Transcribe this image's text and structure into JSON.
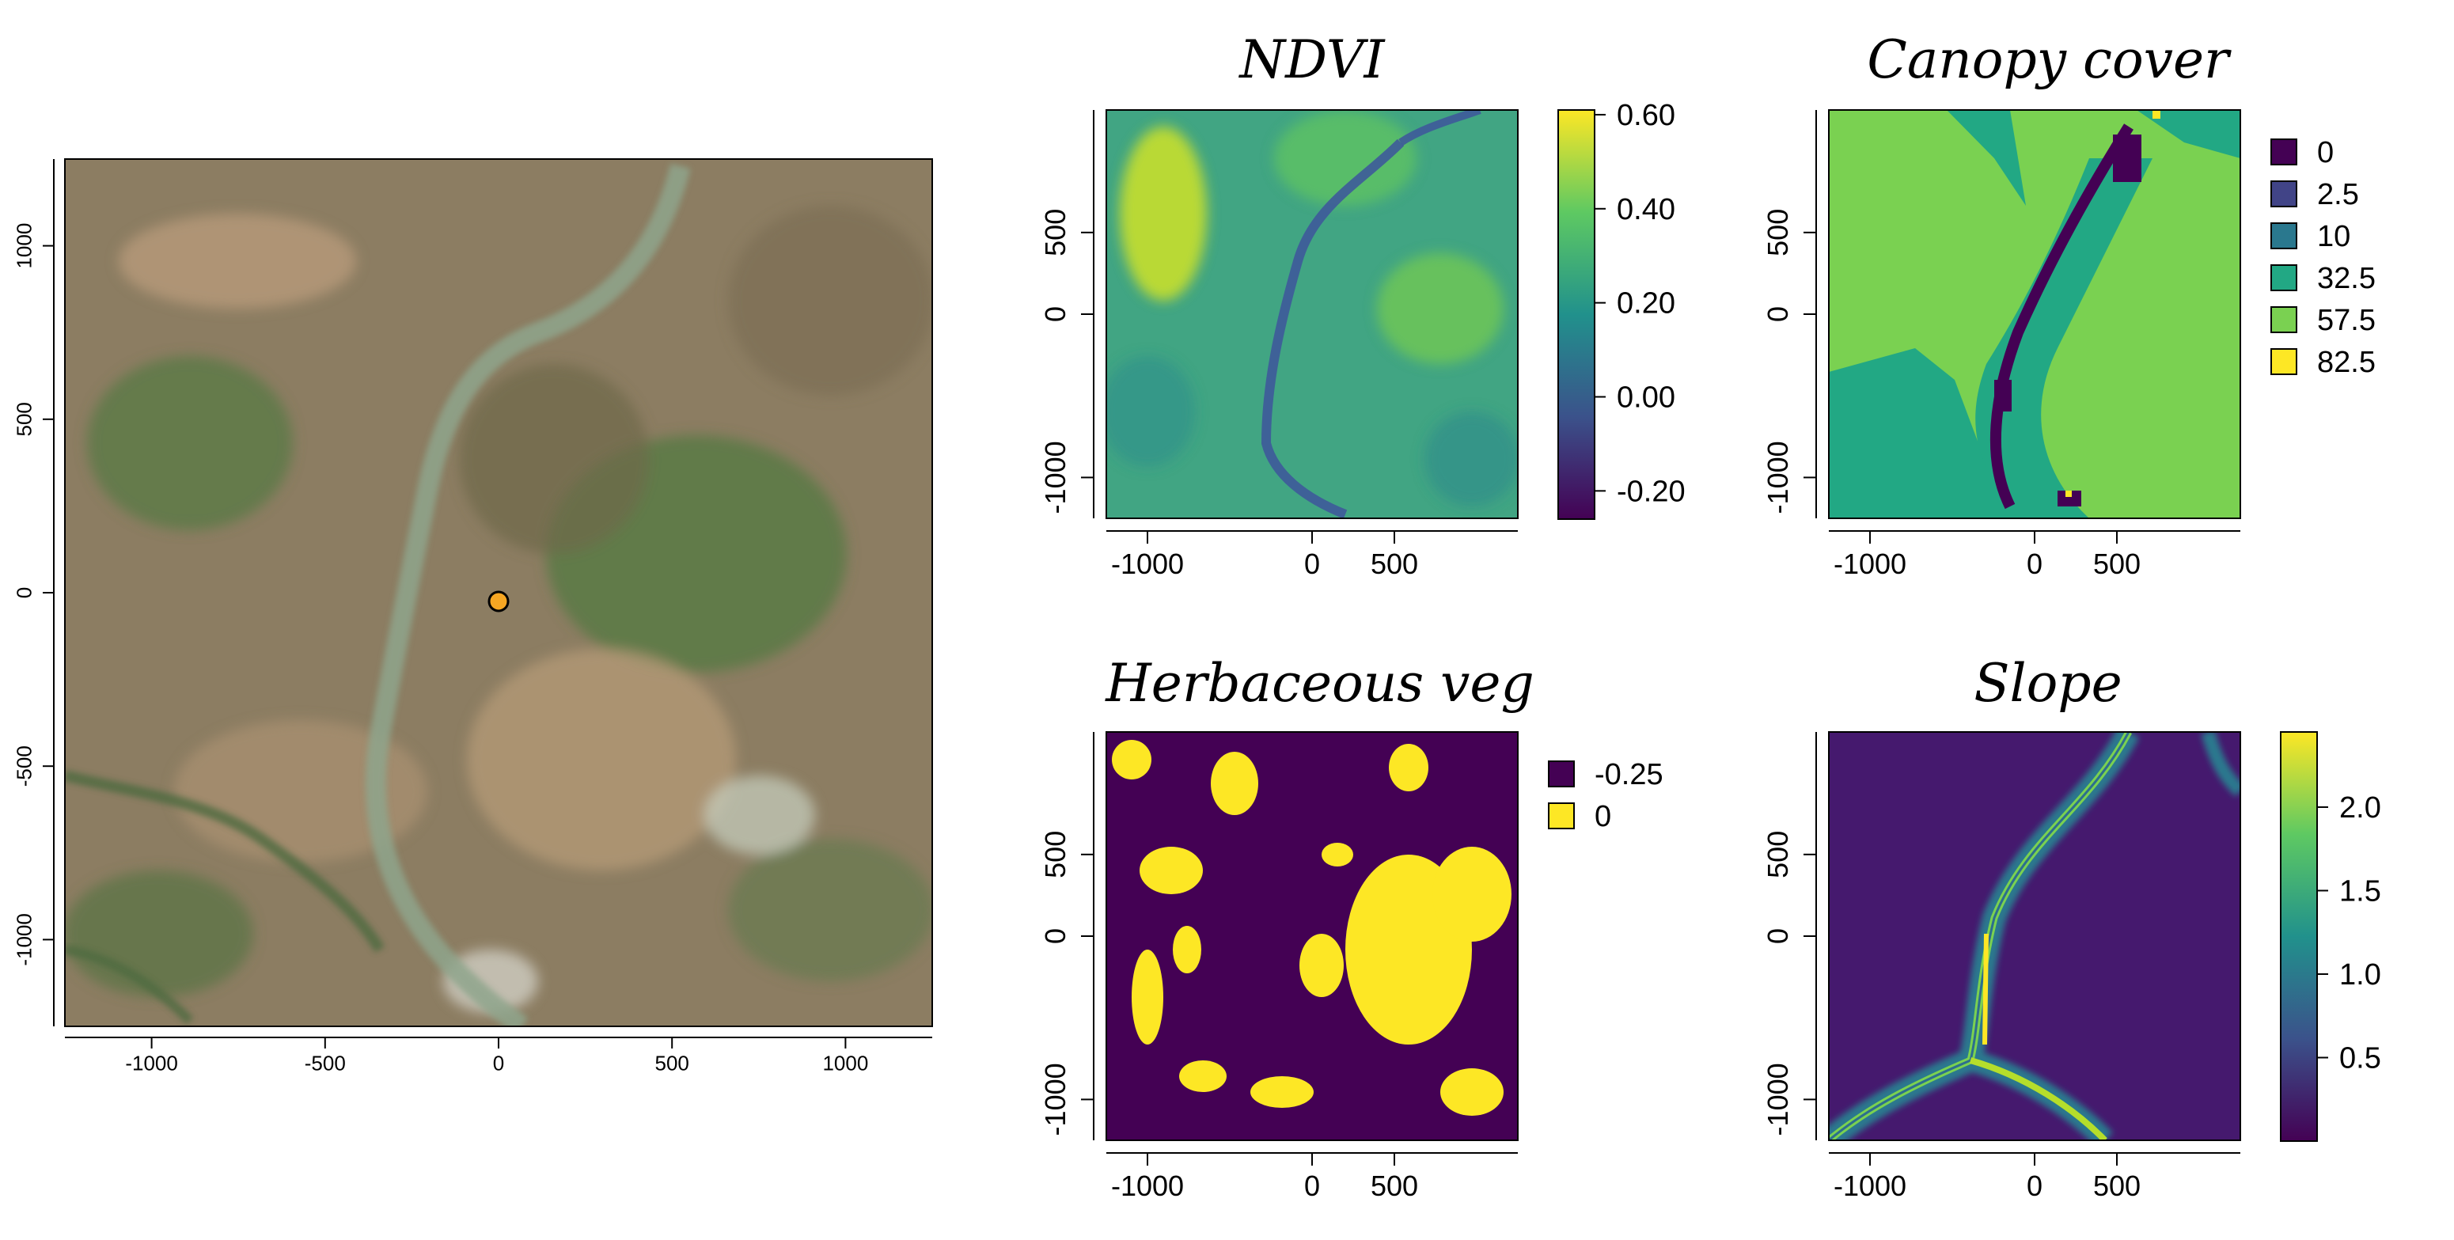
{
  "chart_data": [
    {
      "type": "heatmap",
      "panel": "satellite-rgb",
      "title": "",
      "xlabel": "",
      "ylabel": "",
      "xlim": [
        -1250,
        1250
      ],
      "ylim": [
        -1250,
        1250
      ],
      "xticks": [
        "-1000",
        "-500",
        "0",
        "500",
        "1000"
      ],
      "yticks": [
        "1000",
        "500",
        "0",
        "-500",
        "-1000"
      ],
      "xtick_values": [
        -1000,
        -500,
        0,
        500,
        1000
      ],
      "ytick_values": [
        1000,
        500,
        0,
        -500,
        -1000
      ],
      "grid": false,
      "marker": {
        "x": 0,
        "y": -25,
        "color": "#f5a623"
      },
      "colors": {
        "bg": "#8a7b5e",
        "green": "#5a7a45",
        "tan": "#b89a7a",
        "river": "#8aa38a"
      }
    },
    {
      "type": "heatmap",
      "panel": "ndvi",
      "title": "NDVI",
      "xlim": [
        -1250,
        1250
      ],
      "ylim": [
        -1250,
        1250
      ],
      "xticks": [
        "-1000",
        "0",
        "500"
      ],
      "xtick_values": [
        -1000,
        0,
        500
      ],
      "yticks": [
        "500",
        "0",
        "-1000"
      ],
      "ytick_values": [
        500,
        0,
        -1000
      ],
      "colorbar": {
        "ticks": [
          "0.60",
          "0.40",
          "0.20",
          "0.00",
          "-0.20"
        ],
        "tick_values": [
          0.6,
          0.4,
          0.2,
          0.0,
          -0.2
        ],
        "range": [
          -0.26,
          0.61
        ]
      },
      "colors": {
        "base": "#3fa784",
        "river": "#3b5d9a",
        "high": "#d8e21f"
      }
    },
    {
      "type": "heatmap",
      "panel": "canopy-cover",
      "title": "Canopy cover",
      "xlim": [
        -1250,
        1250
      ],
      "ylim": [
        -1250,
        1250
      ],
      "xticks": [
        "-1000",
        "0",
        "500"
      ],
      "xtick_values": [
        -1000,
        0,
        500
      ],
      "yticks": [
        "500",
        "0",
        "-1000"
      ],
      "ytick_values": [
        500,
        0,
        -1000
      ],
      "legend": {
        "placement": "right",
        "entries": [
          {
            "label": "0",
            "color": "#440154"
          },
          {
            "label": "2.5",
            "color": "#414487"
          },
          {
            "label": "10",
            "color": "#2a788e"
          },
          {
            "label": "32.5",
            "color": "#22a884"
          },
          {
            "label": "57.5",
            "color": "#7ad151"
          },
          {
            "label": "82.5",
            "color": "#fde725"
          }
        ]
      }
    },
    {
      "type": "heatmap",
      "panel": "herbaceous-veg",
      "title": "Herbaceous veg",
      "xlim": [
        -1250,
        1250
      ],
      "ylim": [
        -1250,
        1250
      ],
      "xticks": [
        "-1000",
        "0",
        "500"
      ],
      "xtick_values": [
        -1000,
        0,
        500
      ],
      "yticks": [
        "500",
        "0",
        "-1000"
      ],
      "ytick_values": [
        500,
        0,
        -1000
      ],
      "legend": {
        "placement": "right",
        "entries": [
          {
            "label": "-0.25",
            "color": "#440154"
          },
          {
            "label": "0",
            "color": "#fde725"
          }
        ]
      }
    },
    {
      "type": "heatmap",
      "panel": "slope",
      "title": "Slope",
      "xlim": [
        -1250,
        1250
      ],
      "ylim": [
        -1250,
        1250
      ],
      "xticks": [
        "-1000",
        "0",
        "500"
      ],
      "xtick_values": [
        -1000,
        0,
        500
      ],
      "yticks": [
        "500",
        "0",
        "-1000"
      ],
      "ytick_values": [
        500,
        0,
        -1000
      ],
      "colorbar": {
        "ticks": [
          "2.0",
          "1.5",
          "1.0",
          "0.5"
        ],
        "tick_values": [
          2.0,
          1.5,
          1.0,
          0.5
        ],
        "range": [
          0.0,
          2.45
        ]
      },
      "colors": {
        "base": "#46186f",
        "mid": "#2a788e",
        "high": "#fde725"
      }
    }
  ]
}
